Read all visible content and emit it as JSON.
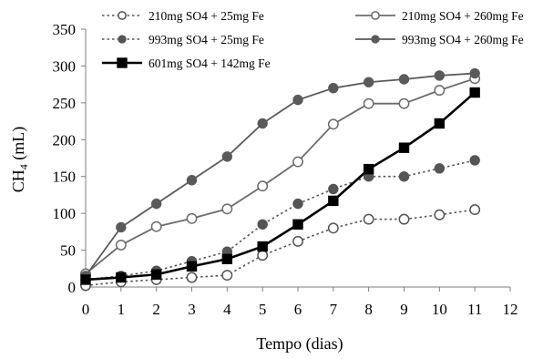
{
  "chart_data": {
    "type": "line",
    "title": "",
    "xlabel": "Tempo (dias)",
    "ylabel": {
      "main": "CH",
      "sub": "4",
      "tail": " (mL)"
    },
    "xlim": [
      0,
      12
    ],
    "ylim": [
      0,
      350
    ],
    "x_ticks": [
      0,
      1,
      2,
      3,
      4,
      5,
      6,
      7,
      8,
      9,
      10,
      11,
      12
    ],
    "y_ticks": [
      0,
      50,
      100,
      150,
      200,
      250,
      300,
      350
    ],
    "grid": false,
    "legend_position": "top",
    "x": [
      0,
      1,
      2,
      3,
      4,
      5,
      6,
      7,
      8,
      9,
      10,
      11
    ],
    "series": [
      {
        "name": "210mg SO4 + 25mg Fe",
        "line": "dotted",
        "marker": "open-circle",
        "color": "#555555",
        "values": [
          2,
          7,
          10,
          13,
          16,
          43,
          62,
          80,
          92,
          92,
          98,
          105
        ]
      },
      {
        "name": "210mg SO4 + 260mg Fe",
        "line": "solid",
        "marker": "open-circle",
        "color": "#6b6b6b",
        "values": [
          18,
          57,
          82,
          93,
          106,
          137,
          170,
          221,
          249,
          249,
          267,
          283
        ]
      },
      {
        "name": "993mg SO4 + 25mg Fe",
        "line": "dotted",
        "marker": "filled-circle",
        "color": "#555555",
        "values": [
          10,
          15,
          22,
          35,
          48,
          85,
          113,
          133,
          150,
          150,
          161,
          172
        ]
      },
      {
        "name": "993mg SO4 + 260mg Fe",
        "line": "solid",
        "marker": "filled-circle",
        "color": "#5a5a5a",
        "values": [
          15,
          81,
          113,
          145,
          177,
          222,
          254,
          270,
          278,
          282,
          287,
          290
        ]
      },
      {
        "name": "601mg SO4 + 142mg Fe",
        "line": "solid-bold",
        "marker": "filled-square",
        "color": "#000000",
        "values": [
          10,
          13,
          17,
          28,
          38,
          55,
          85,
          117,
          160,
          189,
          222,
          264
        ]
      }
    ]
  }
}
